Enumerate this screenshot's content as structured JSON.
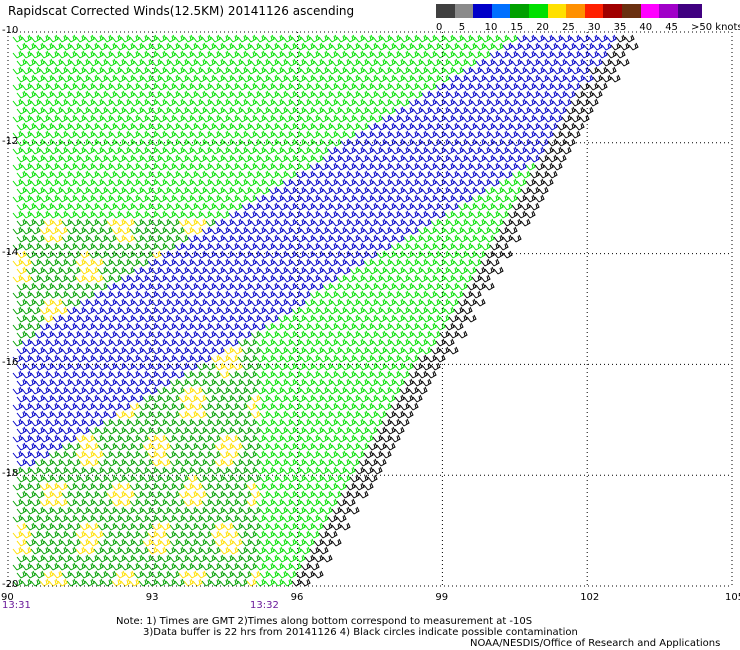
{
  "title": "Rapidscat Corrected Winds(12.5KM) 20141126 ascending",
  "legend": {
    "labels": [
      "0",
      "5",
      "10",
      "15",
      "20",
      "25",
      "30",
      "35",
      "40",
      "45",
      ">50 knots"
    ],
    "colors": [
      "#404040",
      "#8a8a8a",
      "#0000c8",
      "#0070ff",
      "#00a000",
      "#00e000",
      "#ffe000",
      "#ff9000",
      "#ff2000",
      "#a00000",
      "#6a3010",
      "#ff00ff",
      "#a000c8",
      "#400080"
    ]
  },
  "map": {
    "lat_labels": [
      "-10",
      "-12",
      "-14",
      "-16",
      "-18",
      "-20"
    ],
    "lon_labels": [
      "90",
      "93",
      "96",
      "99",
      "102",
      "105"
    ],
    "lat_range": [
      -20,
      -10
    ],
    "lon_range": [
      90,
      105
    ],
    "wind_colors": {
      "light": "#ffe000",
      "moderate": "#00a000",
      "fresh": "#00e000",
      "strong": "#0000c8",
      "edge": "#000000"
    }
  },
  "times": {
    "left": "13:31",
    "middle": "13:32"
  },
  "notes": {
    "line1": "Note: 1) Times are GMT 2)Times along bottom correspond to measurement at -10S",
    "line2": "3)Data buffer is 22 hrs from 20141126 4) Black circles indicate possible contamination",
    "credit": "NOAA/NESDIS/Office of Research and Applications"
  }
}
